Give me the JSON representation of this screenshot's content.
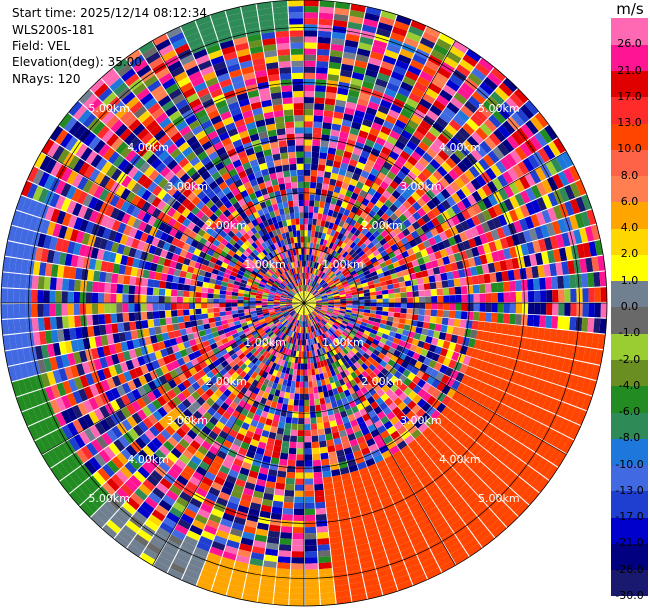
{
  "header": {
    "start_time": "Start time: 2025/12/14 08:12:34",
    "instrument": "WLS200s-181",
    "field": "Field: VEL",
    "elevation": "Elevation(deg): 35.00",
    "nrays": "NRays: 120"
  },
  "chart_data": {
    "type": "heatmap",
    "subtype": "polar-ppi",
    "field": "VEL",
    "units": "m/s",
    "n_rays": 120,
    "range_rings_km": [
      1,
      2,
      3,
      4,
      5
    ],
    "ring_labels": [
      "1.00km",
      "2.00km",
      "3.00km",
      "4.00km",
      "5.00km"
    ],
    "max_range_km": 5.5,
    "color_scale": {
      "title": "m/s",
      "boundaries": [
        -30.0,
        -26.0,
        -21.0,
        -17.0,
        -13.0,
        -10.0,
        -8.0,
        -6.0,
        -4.0,
        -2.0,
        -1.0,
        0.0,
        1.0,
        2.0,
        4.0,
        6.0,
        8.0,
        10.0,
        13.0,
        17.0,
        21.0,
        26.0,
        30.0
      ],
      "tick_labels": [
        "26.0",
        "21.0",
        "17.0",
        "13.0",
        "10.0",
        "8.0",
        "6.0",
        "4.0",
        "2.0",
        "1.0",
        "0.0",
        "-1.0",
        "-2.0",
        "-4.0",
        "-6.0",
        "-8.0",
        "-10.0",
        "-13.0",
        "-17.0",
        "-21.0",
        "-26.0",
        "-30.0"
      ],
      "colors": [
        "#191970",
        "#000080",
        "#0000cd",
        "#1e3fd0",
        "#4169e1",
        "#1e78dc",
        "#2e8b57",
        "#228b22",
        "#6b8e23",
        "#9acd32",
        "#696969",
        "#708090",
        "#ffff00",
        "#ffd700",
        "#ffa500",
        "#ff7f50",
        "#ff6347",
        "#ff4500",
        "#ff2a2a",
        "#e00000",
        "#ff1493",
        "#ff69b4"
      ]
    },
    "sectors": [
      {
        "azimuth_range_deg": [
          95,
          175
        ],
        "range_km": [
          3.2,
          5.5
        ],
        "value_ms": 11.5
      },
      {
        "azimuth_range_deg": [
          150,
          172
        ],
        "range_km": [
          4.6,
          5.5
        ],
        "value_ms": 9.0
      },
      {
        "azimuth_range_deg": [
          172,
          200
        ],
        "range_km": [
          4.8,
          5.5
        ],
        "value_ms": 5.0
      },
      {
        "azimuth_range_deg": [
          200,
          225
        ],
        "range_km": [
          4.8,
          5.5
        ],
        "value_ms": 0.5
      },
      {
        "azimuth_range_deg": [
          225,
          255
        ],
        "range_km": [
          4.9,
          5.5
        ],
        "value_ms": -5.0
      },
      {
        "azimuth_range_deg": [
          255,
          290
        ],
        "range_km": [
          4.9,
          5.5
        ],
        "value_ms": -11.0
      },
      {
        "azimuth_range_deg": [
          335,
          358
        ],
        "range_km": [
          5.0,
          5.5
        ],
        "value_ms": -7.0
      },
      {
        "azimuth_range_deg": [
          0,
          360
        ],
        "range_km": [
          0.0,
          0.25
        ],
        "value_ms": 1.5
      }
    ],
    "background": "noisy"
  }
}
